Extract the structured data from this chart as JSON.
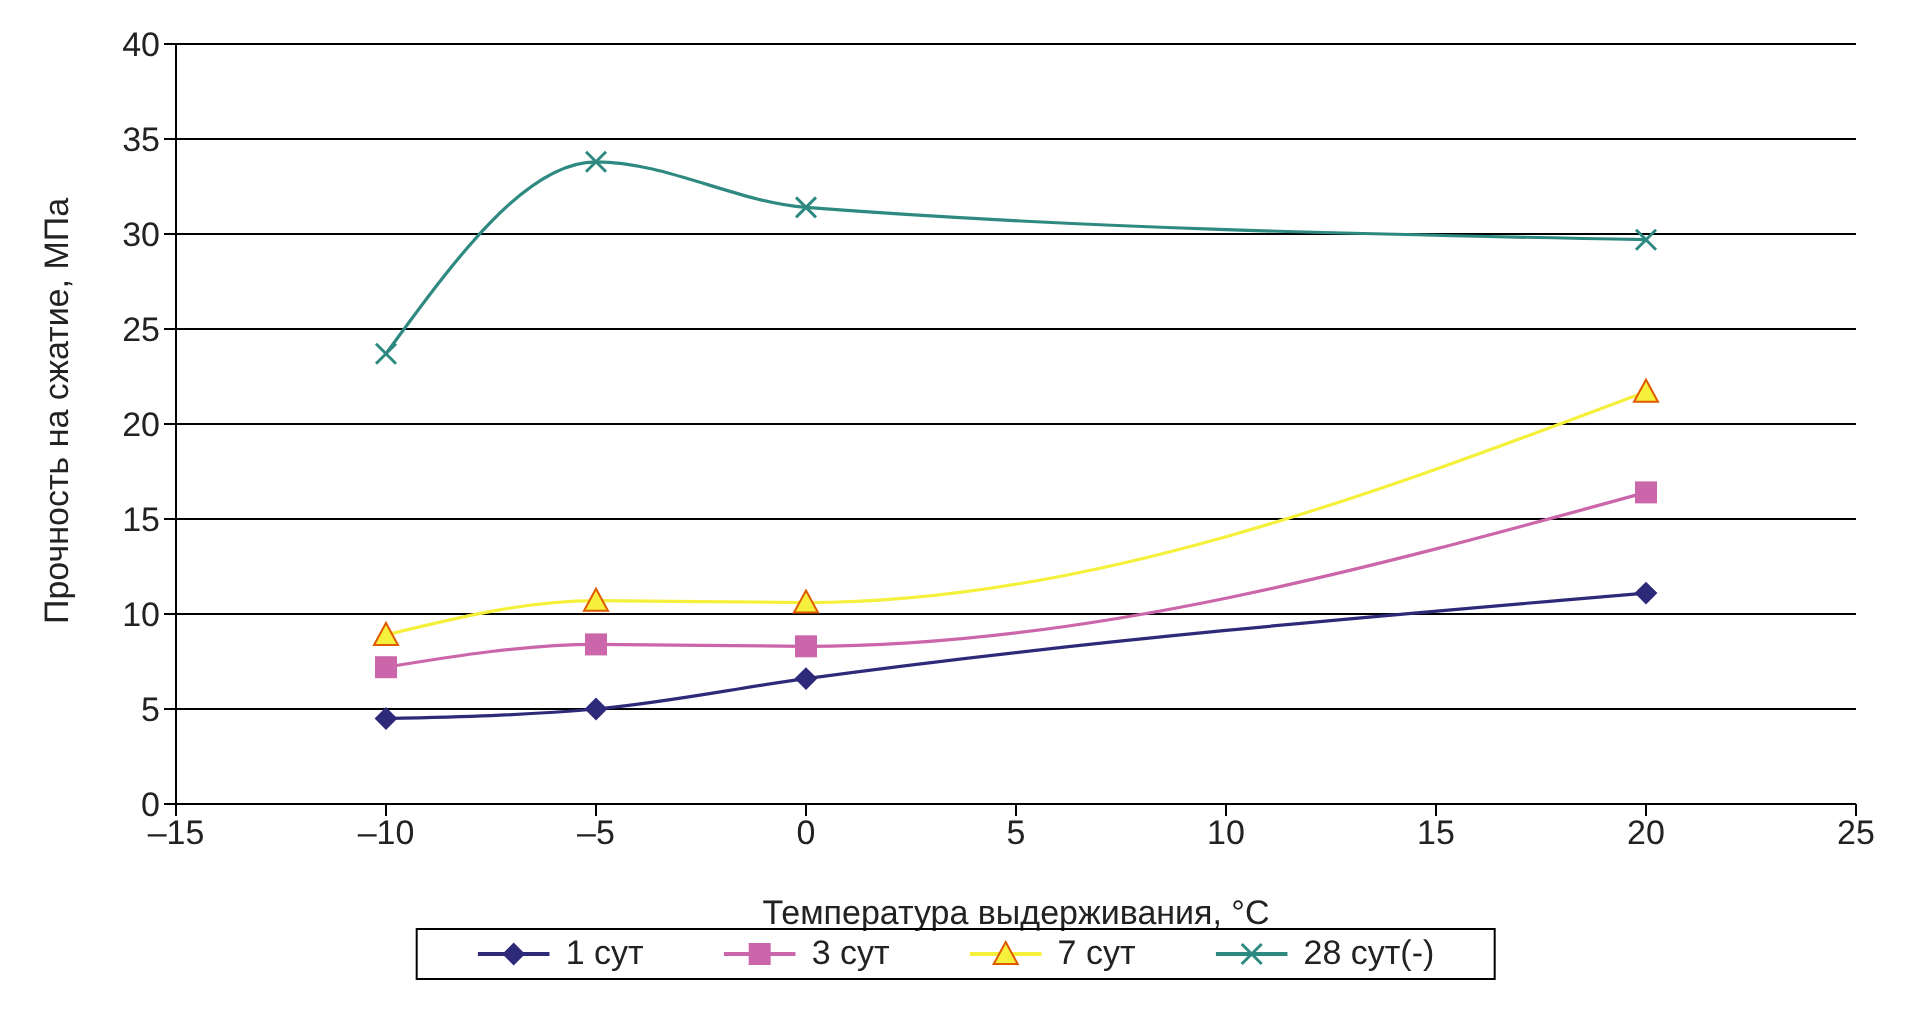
{
  "chart_data": {
    "type": "line",
    "xlabel": "Температура выдерживания, °C",
    "ylabel": "Прочность на сжатие, МПа",
    "x": [
      -10,
      -5,
      0,
      20
    ],
    "series": [
      {
        "name": "1 сут",
        "color": "#2e2a7a",
        "marker": "diamond",
        "values": [
          4.5,
          5.0,
          6.6,
          11.1
        ]
      },
      {
        "name": "3 сут",
        "color": "#cc66aa",
        "marker": "square",
        "values": [
          7.2,
          8.4,
          8.3,
          16.4
        ]
      },
      {
        "name": "7 сут",
        "color": "#f5f03c",
        "marker": "triangle",
        "values": [
          8.9,
          10.7,
          10.6,
          21.7
        ]
      },
      {
        "name": "28 сут(-)",
        "color": "#2e8a80",
        "marker": "cross",
        "values": [
          23.7,
          33.8,
          31.4,
          29.7
        ]
      }
    ],
    "xlim": [
      -15,
      25
    ],
    "xticks": [
      {
        "value": -15,
        "label": "–15"
      },
      {
        "value": -10,
        "label": "–10"
      },
      {
        "value": -5,
        "label": "–5"
      },
      0,
      5,
      10,
      15,
      20,
      25
    ],
    "ylim": [
      0,
      40
    ],
    "yticks": [
      0,
      5,
      10,
      15,
      20,
      25,
      30,
      35,
      40
    ],
    "grid": "y",
    "legend": "bottom",
    "line_style": "solid"
  }
}
